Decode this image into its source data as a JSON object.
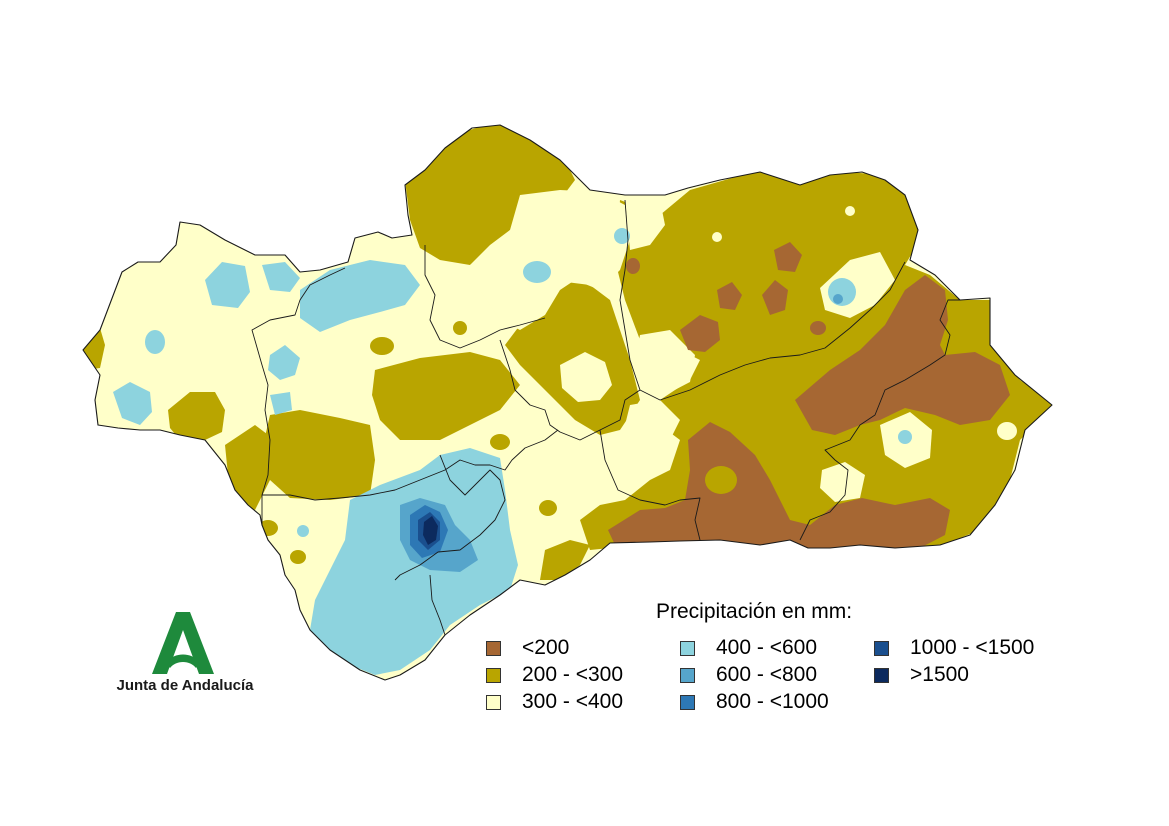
{
  "legend": {
    "title": "Precipitación en mm:",
    "items": [
      {
        "label": "<200",
        "color": "#a66733"
      },
      {
        "label": "200 - <300",
        "color": "#b9a500"
      },
      {
        "label": "300 - <400",
        "color": "#ffffc9"
      },
      {
        "label": "400 - <600",
        "color": "#8dd3de"
      },
      {
        "label": "600 - <800",
        "color": "#56a5cb"
      },
      {
        "label": "800 - <1000",
        "color": "#2d78b5"
      },
      {
        "label": "1000 - <1500",
        "color": "#1a4f8e"
      },
      {
        "label": ">1500",
        "color": "#0c2a5e"
      }
    ]
  },
  "logo": {
    "text": "Junta de Andalucía",
    "color": "#1e8a3c"
  }
}
